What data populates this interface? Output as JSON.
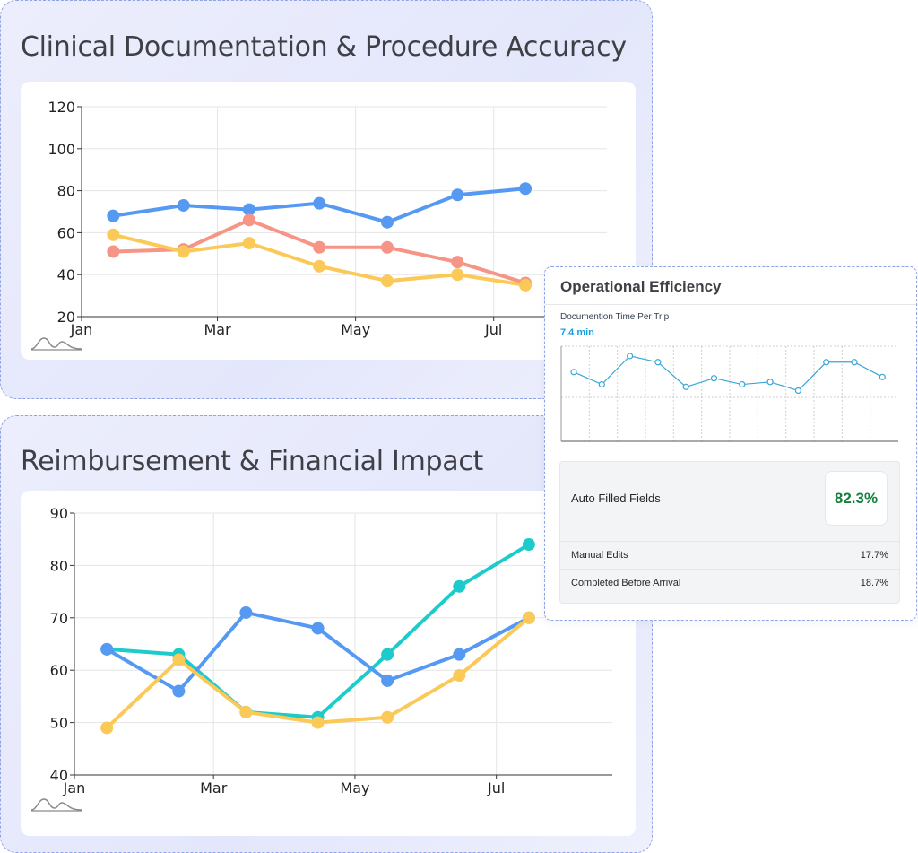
{
  "panel1": {
    "title": "Clinical Documentation & Procedure Accuracy"
  },
  "panel2": {
    "title": "Reimbursement & Financial Impact"
  },
  "popover": {
    "title": "Operational Efficiency",
    "metric_label": "Documention Time Per Trip",
    "metric_value": "7.4 min",
    "auto_filled_label": "Auto Filled Fields",
    "auto_filled_value": "82.3%",
    "rows": [
      {
        "label": "Manual Edits",
        "value": "17.7%"
      },
      {
        "label": "Completed Before Arrival",
        "value": "18.7%"
      }
    ]
  },
  "chart_data": [
    {
      "type": "line",
      "title": "Clinical Documentation & Procedure Accuracy",
      "x": [
        "2024-01-15",
        "2024-02-15",
        "2024-03-15",
        "2024-04-15",
        "2024-05-15",
        "2024-06-15",
        "2024-07-15"
      ],
      "x_ticks": [
        "Jan",
        "Mar",
        "May",
        "Jul"
      ],
      "y_ticks": [
        20,
        40,
        60,
        80,
        100,
        120
      ],
      "ylim": [
        20,
        120
      ],
      "grid": true,
      "series": [
        {
          "color": "#5599f2",
          "values": [
            68,
            73,
            71,
            74,
            65,
            78,
            81
          ]
        },
        {
          "color": "#f69486",
          "values": [
            51,
            52,
            66,
            53,
            53,
            46,
            36
          ]
        },
        {
          "color": "#fbc957",
          "values": [
            59,
            51,
            55,
            44,
            37,
            40,
            35
          ]
        }
      ]
    },
    {
      "type": "line",
      "title": "Reimbursement & Financial Impact",
      "x": [
        "2024-01-15",
        "2024-02-15",
        "2024-03-15",
        "2024-04-15",
        "2024-05-15",
        "2024-06-15",
        "2024-07-15"
      ],
      "x_ticks": [
        "Jan",
        "Mar",
        "May",
        "Jul"
      ],
      "y_ticks": [
        40,
        50,
        60,
        70,
        80,
        90
      ],
      "ylim": [
        40,
        90
      ],
      "grid": true,
      "series": [
        {
          "color": "#1ecbcb",
          "values": [
            64,
            63,
            52,
            51,
            63,
            76,
            84
          ]
        },
        {
          "color": "#5599f2",
          "values": [
            64,
            56,
            71,
            68,
            58,
            63,
            70
          ]
        },
        {
          "color": "#fbc957",
          "values": [
            49,
            62,
            52,
            50,
            51,
            59,
            70
          ]
        }
      ]
    },
    {
      "type": "line",
      "title": "Documention Time Per Trip",
      "x": [
        1,
        2,
        3,
        4,
        5,
        6,
        7,
        8,
        9,
        10,
        11,
        12
      ],
      "ylim": [
        0,
        10
      ],
      "grid": true,
      "series": [
        {
          "color": "#39a6d8",
          "values": [
            8.2,
            7.2,
            9.5,
            9.0,
            7.0,
            7.7,
            7.2,
            7.4,
            6.7,
            9.0,
            9.0,
            7.8
          ]
        }
      ]
    }
  ]
}
